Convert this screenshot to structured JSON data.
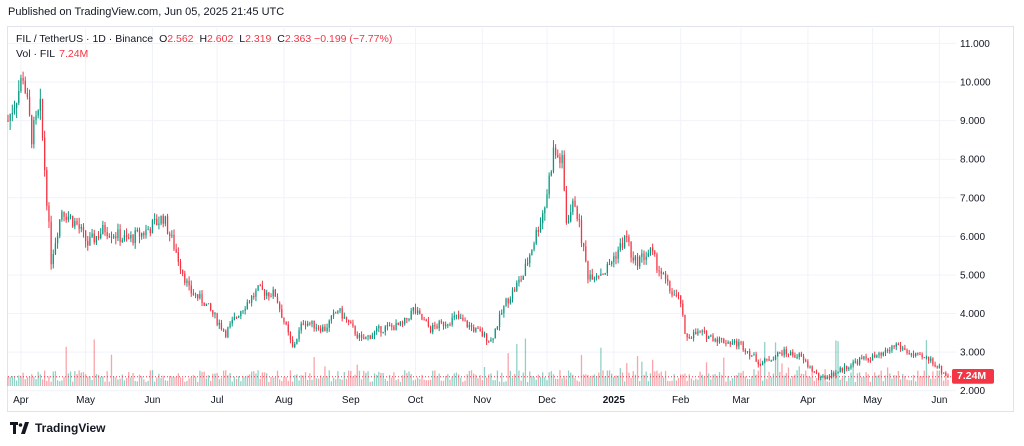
{
  "header": {
    "published": "Published on TradingView.com, Jun 05, 2025 21:45 UTC"
  },
  "legend": {
    "symbol": "FIL / TetherUS · 1D · Binance",
    "o_label": "O",
    "o_value": "2.562",
    "h_label": "H",
    "h_value": "2.602",
    "l_label": "L",
    "l_value": "2.319",
    "c_label": "C",
    "c_value": "2.363",
    "change": "−0.199 (−7.77%)",
    "vol_label": "Vol · FIL",
    "vol_value": "7.24M"
  },
  "footer": {
    "brand": "TradingView"
  },
  "colors": {
    "up": "#089981",
    "down": "#f23645",
    "grid": "#f0f3fa",
    "price_line": "#f23645"
  },
  "chart_data": {
    "type": "candlestick",
    "y_ticks": [
      "11.000",
      "10.000",
      "9.000",
      "8.000",
      "7.000",
      "6.000",
      "5.000",
      "4.000",
      "3.000",
      "2.000"
    ],
    "ylim": [
      1.5,
      11.4
    ],
    "x_ticks": [
      "Apr",
      "May",
      "Jun",
      "Jul",
      "Aug",
      "Sep",
      "Oct",
      "Nov",
      "Dec",
      "2025",
      "Feb",
      "Mar",
      "Apr",
      "May",
      "Jun"
    ],
    "last_price": 2.363,
    "last_price_label": "2.363",
    "last_volume_label": "7.24M",
    "price_keypoints": [
      {
        "date": "2024-03-26",
        "close": 9.0
      },
      {
        "date": "2024-03-31",
        "close": 9.8
      },
      {
        "date": "2024-04-02",
        "close": 10.2
      },
      {
        "date": "2024-04-06",
        "close": 8.6
      },
      {
        "date": "2024-04-10",
        "close": 9.3
      },
      {
        "date": "2024-04-13",
        "close": 7.0
      },
      {
        "date": "2024-04-15",
        "close": 5.4
      },
      {
        "date": "2024-04-20",
        "close": 6.7
      },
      {
        "date": "2024-04-27",
        "close": 6.3
      },
      {
        "date": "2024-05-02",
        "close": 5.8
      },
      {
        "date": "2024-05-10",
        "close": 6.2
      },
      {
        "date": "2024-05-20",
        "close": 5.9
      },
      {
        "date": "2024-05-28",
        "close": 6.1
      },
      {
        "date": "2024-06-06",
        "close": 6.5
      },
      {
        "date": "2024-06-12",
        "close": 5.6
      },
      {
        "date": "2024-06-18",
        "close": 4.6
      },
      {
        "date": "2024-06-25",
        "close": 4.3
      },
      {
        "date": "2024-07-05",
        "close": 3.5
      },
      {
        "date": "2024-07-12",
        "close": 4.1
      },
      {
        "date": "2024-07-20",
        "close": 4.6
      },
      {
        "date": "2024-07-28",
        "close": 4.5
      },
      {
        "date": "2024-08-05",
        "close": 3.1
      },
      {
        "date": "2024-08-10",
        "close": 3.8
      },
      {
        "date": "2024-08-20",
        "close": 3.6
      },
      {
        "date": "2024-08-26",
        "close": 4.1
      },
      {
        "date": "2024-09-06",
        "close": 3.3
      },
      {
        "date": "2024-09-15",
        "close": 3.6
      },
      {
        "date": "2024-09-25",
        "close": 3.7
      },
      {
        "date": "2024-09-30",
        "close": 4.1
      },
      {
        "date": "2024-10-08",
        "close": 3.6
      },
      {
        "date": "2024-10-20",
        "close": 3.9
      },
      {
        "date": "2024-10-28",
        "close": 3.6
      },
      {
        "date": "2024-11-05",
        "close": 3.3
      },
      {
        "date": "2024-11-12",
        "close": 4.3
      },
      {
        "date": "2024-11-20",
        "close": 5.0
      },
      {
        "date": "2024-11-25",
        "close": 5.9
      },
      {
        "date": "2024-11-30",
        "close": 6.8
      },
      {
        "date": "2024-12-04",
        "close": 8.2
      },
      {
        "date": "2024-12-08",
        "close": 7.9
      },
      {
        "date": "2024-12-10",
        "close": 6.4
      },
      {
        "date": "2024-12-14",
        "close": 6.9
      },
      {
        "date": "2024-12-20",
        "close": 5.0
      },
      {
        "date": "2024-12-28",
        "close": 5.1
      },
      {
        "date": "2025-01-07",
        "close": 6.0
      },
      {
        "date": "2025-01-10",
        "close": 5.3
      },
      {
        "date": "2025-01-18",
        "close": 5.6
      },
      {
        "date": "2025-01-27",
        "close": 4.6
      },
      {
        "date": "2025-02-01",
        "close": 4.3
      },
      {
        "date": "2025-02-03",
        "close": 3.4
      },
      {
        "date": "2025-02-10",
        "close": 3.5
      },
      {
        "date": "2025-02-20",
        "close": 3.3
      },
      {
        "date": "2025-03-01",
        "close": 3.2
      },
      {
        "date": "2025-03-10",
        "close": 2.7
      },
      {
        "date": "2025-03-20",
        "close": 3.0
      },
      {
        "date": "2025-03-28",
        "close": 2.9
      },
      {
        "date": "2025-04-02",
        "close": 2.6
      },
      {
        "date": "2025-04-07",
        "close": 2.3
      },
      {
        "date": "2025-04-15",
        "close": 2.5
      },
      {
        "date": "2025-04-25",
        "close": 2.8
      },
      {
        "date": "2025-05-05",
        "close": 2.9
      },
      {
        "date": "2025-05-12",
        "close": 3.2
      },
      {
        "date": "2025-05-20",
        "close": 2.9
      },
      {
        "date": "2025-05-28",
        "close": 2.8
      },
      {
        "date": "2025-06-05",
        "close": 2.363
      }
    ]
  }
}
